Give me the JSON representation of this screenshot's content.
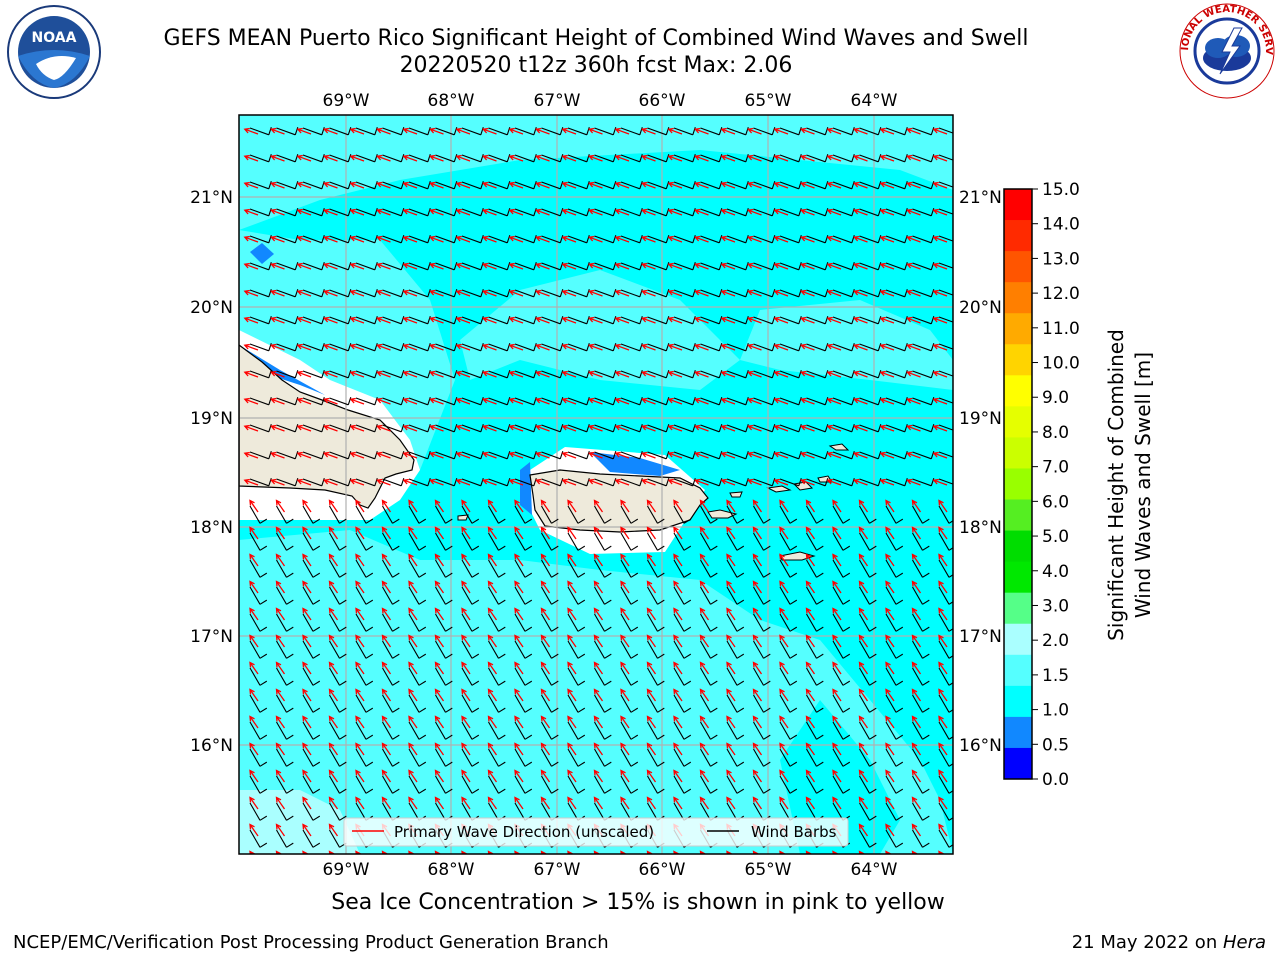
{
  "header": {
    "title_line1": "GEFS MEAN Puerto Rico Significant Height of Combined Wind Waves and Swell",
    "title_line2": "20220520 t12z 360h fcst   Max: 2.06"
  },
  "logos": {
    "left": {
      "icon": "noaa-logo",
      "text": "NOAA"
    },
    "right": {
      "icon": "nws-logo",
      "text": "NATIONAL WEATHER SERVICE"
    }
  },
  "map": {
    "lon_ticks": [
      "69°W",
      "68°W",
      "67°W",
      "66°W",
      "65°W",
      "64°W"
    ],
    "lat_ticks": [
      "21°N",
      "20°N",
      "19°N",
      "18°N",
      "17°N",
      "16°N"
    ],
    "extent": {
      "lon_min": -69.99,
      "lon_max": -63.25,
      "lat_min": 15.0,
      "lat_max": 21.75
    },
    "land_color": "#eeeadb",
    "legend": {
      "primary_wave": "Primary Wave Direction (unscaled)",
      "wind_barbs": "Wind Barbs",
      "primary_wave_color": "#ff0000",
      "wind_barb_color": "#000000"
    }
  },
  "colorbar": {
    "label_line1": "Significant Height of Combined",
    "label_line2": "Wind Waves and Swell [m]",
    "ticks": [
      "15.0",
      "14.0",
      "13.0",
      "12.0",
      "11.0",
      "10.0",
      "9.0",
      "8.0",
      "7.0",
      "6.0",
      "5.0",
      "4.0",
      "3.0",
      "2.0",
      "1.5",
      "1.0",
      "0.5",
      "0.0"
    ],
    "colors_top_to_bottom": [
      "#ff0000",
      "#ff2a00",
      "#ff5500",
      "#ff7f00",
      "#ffaa00",
      "#ffd400",
      "#ffff00",
      "#e5ff00",
      "#cbff00",
      "#99ff00",
      "#55ee22",
      "#00dd00",
      "#00e800",
      "#55ff88",
      "#aaffff",
      "#55ffff",
      "#00ffff",
      "#1188ff",
      "#0000ff"
    ]
  },
  "note": "Sea Ice Concentration > 15% is shown in pink to yellow",
  "footer": {
    "left": "NCEP/EMC/Verification Post Processing Product Generation Branch",
    "date": "21 May 2022 on ",
    "machine": "Hera"
  }
}
